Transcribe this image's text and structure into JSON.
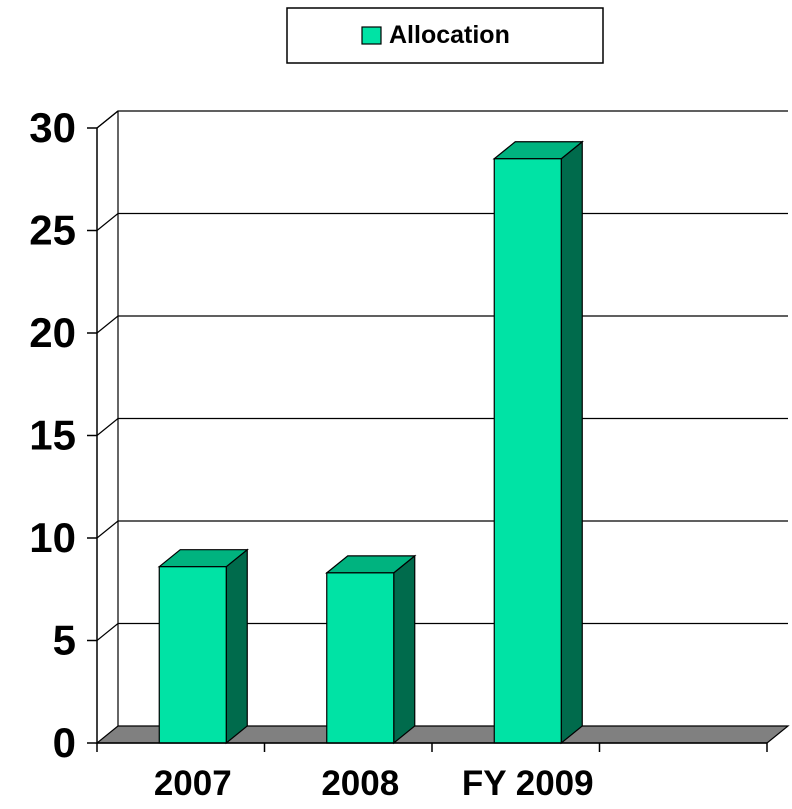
{
  "chart_data": {
    "type": "bar",
    "categories": [
      "2007",
      "2008",
      "FY 2009",
      ""
    ],
    "series": [
      {
        "name": "Allocation",
        "values": [
          8.6,
          8.3,
          28.5,
          null
        ]
      }
    ],
    "ylim": [
      0,
      30
    ],
    "yticks": [
      0,
      5,
      10,
      15,
      20,
      25,
      30
    ],
    "grid": true,
    "legend": "top-center",
    "three_d": true,
    "colors": {
      "bar_front": "#00e3a5",
      "bar_top": "#00b37f",
      "bar_side": "#006b4c",
      "floor": "#808080",
      "grid": "#000000"
    }
  }
}
